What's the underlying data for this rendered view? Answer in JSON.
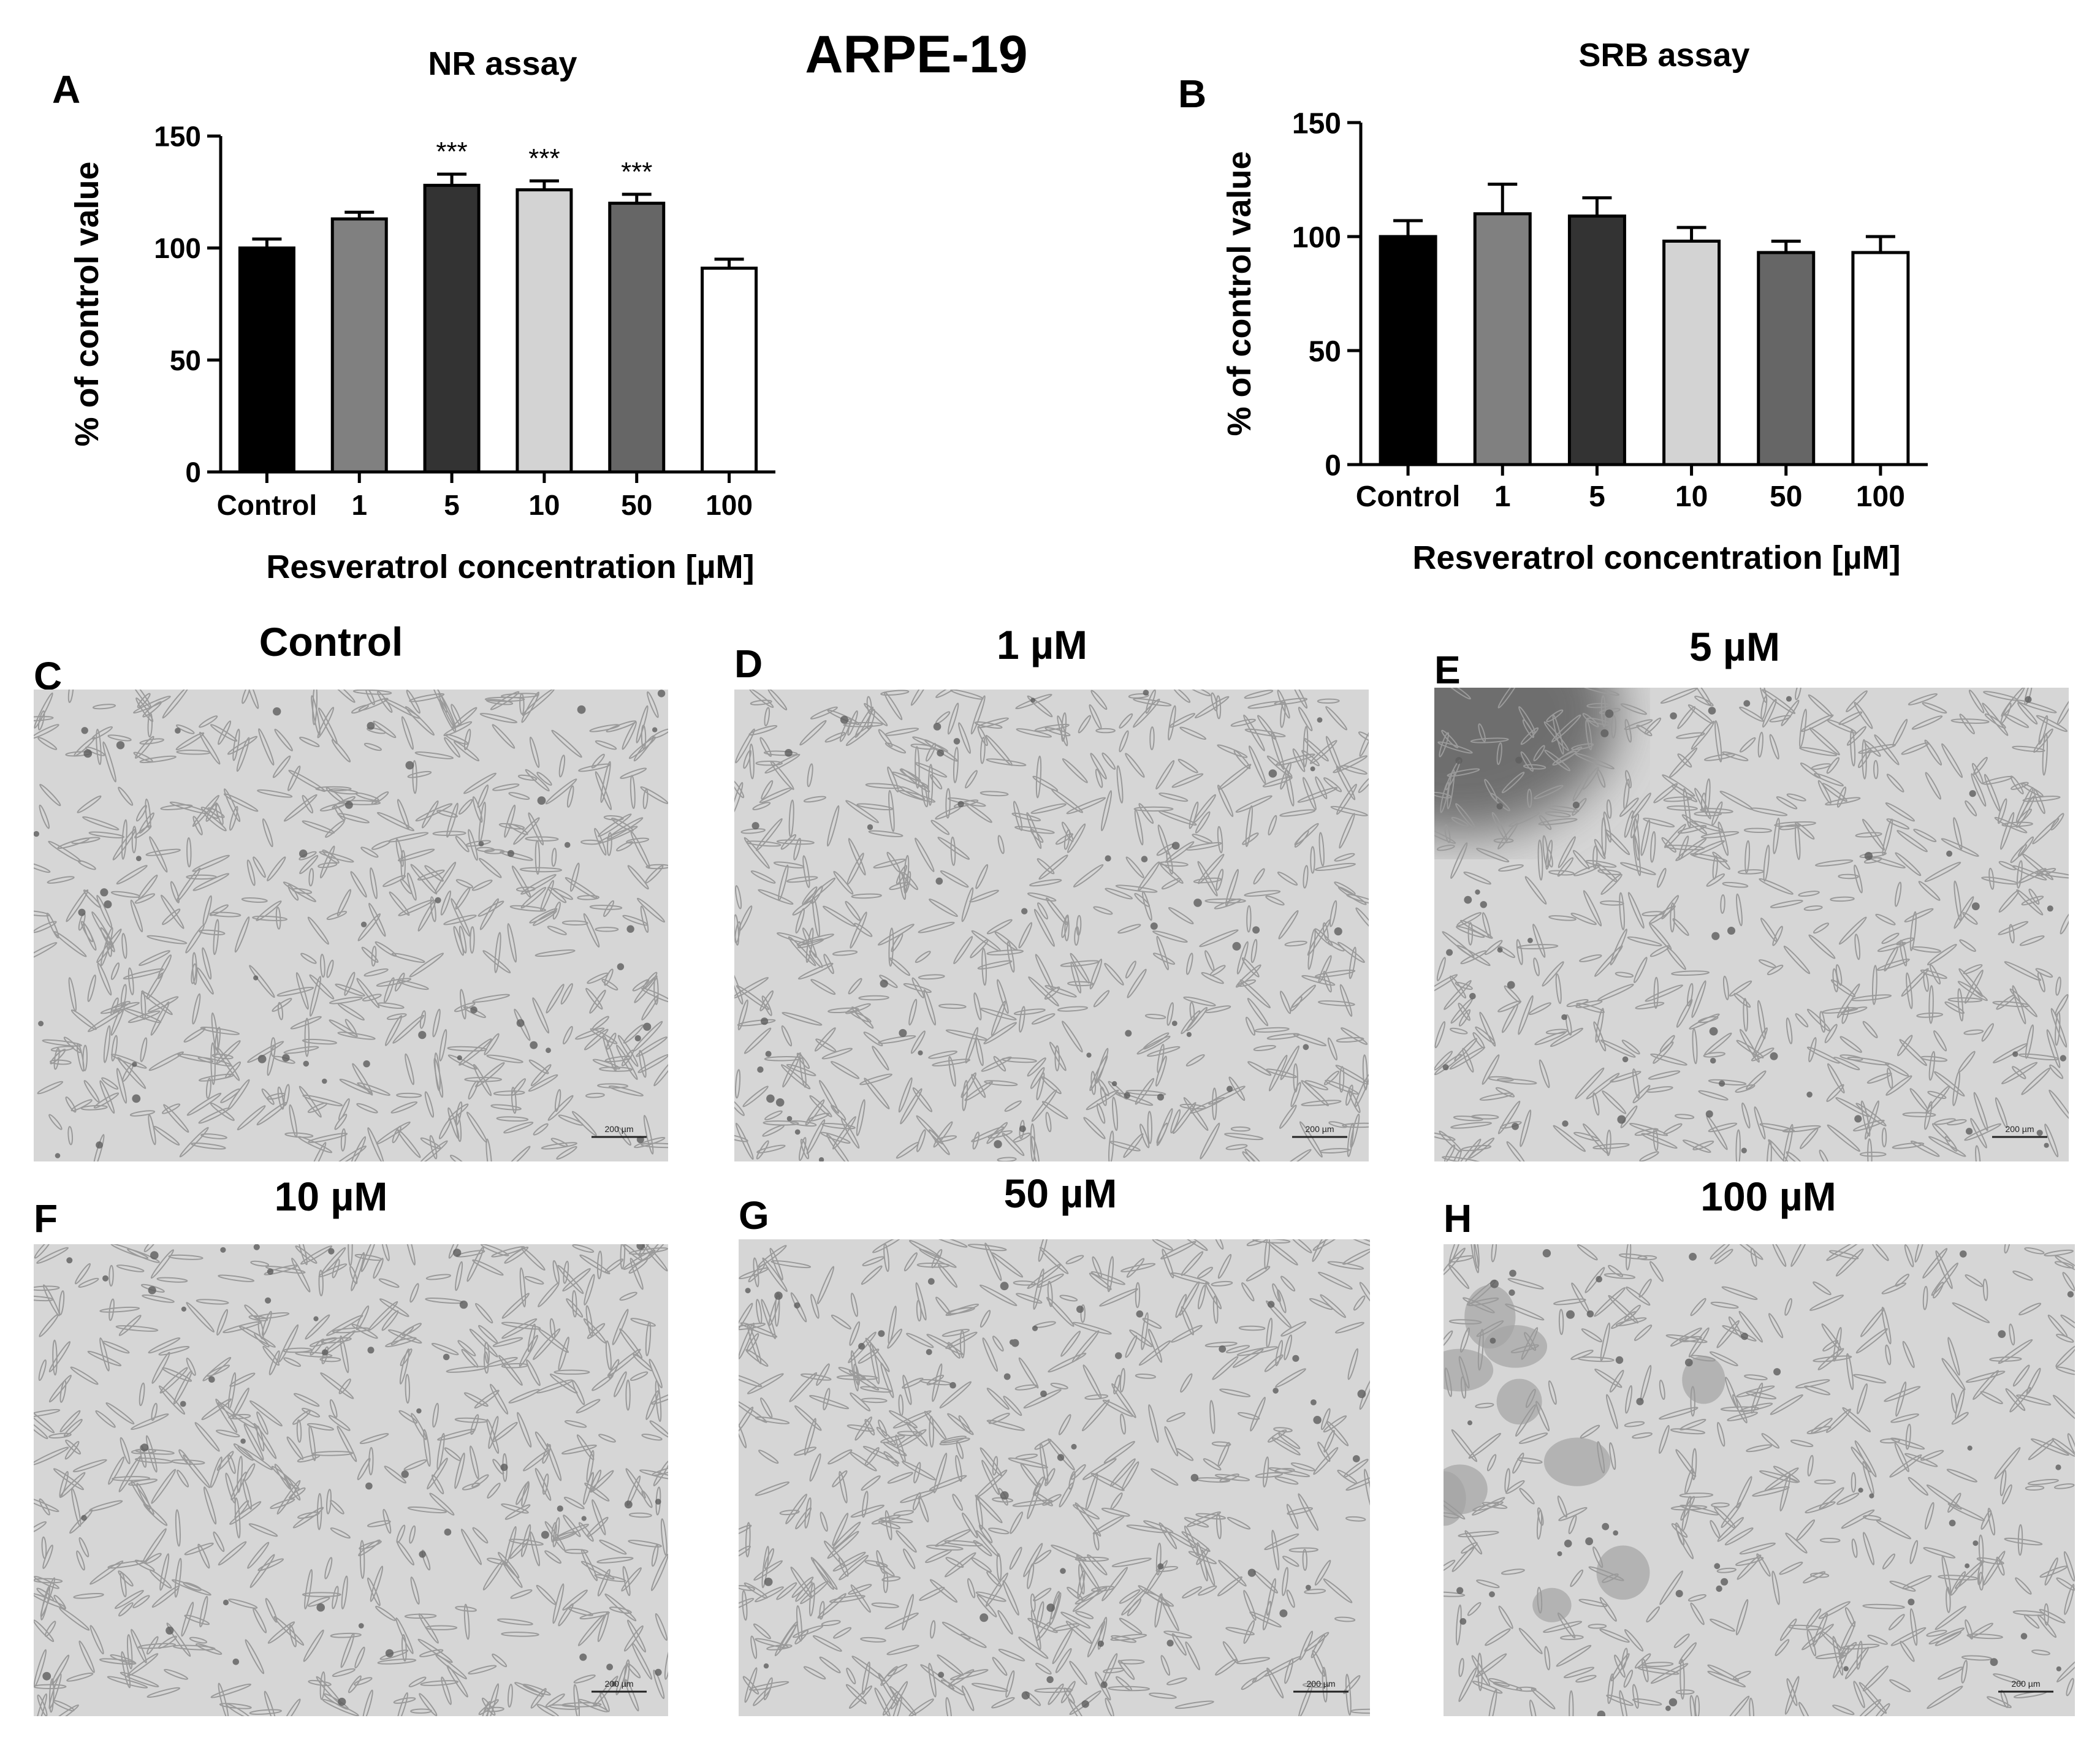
{
  "figure_title": "ARPE-19",
  "colors": {
    "bar_fills": [
      "#000000",
      "#808080",
      "#333333",
      "#d3d3d3",
      "#666666",
      "#ffffff"
    ],
    "micro_bg": "#d6d6d6",
    "micro_cell": "#a9a9a9"
  },
  "chart_data": [
    {
      "type": "bar",
      "panel_label": "A",
      "title": "NR assay",
      "xlabel": "Resveratrol concentration [µM]",
      "ylabel": "% of control value",
      "categories": [
        "Control",
        "1",
        "5",
        "10",
        "50",
        "100"
      ],
      "values": [
        100,
        113,
        128,
        126,
        120,
        91
      ],
      "errors": [
        4,
        3,
        5,
        4,
        4,
        4
      ],
      "significance": [
        "",
        "",
        "***",
        "***",
        "***",
        ""
      ],
      "ylim": [
        0,
        150
      ],
      "yticks": [
        "0",
        "50",
        "100",
        "150"
      ],
      "grid": false,
      "legend": "none"
    },
    {
      "type": "bar",
      "panel_label": "B",
      "title": "SRB assay",
      "xlabel": "Resveratrol concentration [µM]",
      "ylabel": "% of control value",
      "categories": [
        "Control",
        "1",
        "5",
        "10",
        "50",
        "100"
      ],
      "values": [
        100,
        110,
        109,
        98,
        93,
        93
      ],
      "errors": [
        7,
        13,
        8,
        6,
        5,
        7
      ],
      "significance": [
        "",
        "",
        "",
        "",
        "",
        ""
      ],
      "ylim": [
        0,
        150
      ],
      "yticks": [
        "0",
        "50",
        "100",
        "150"
      ],
      "grid": false,
      "legend": "none"
    }
  ],
  "micrographs": [
    {
      "label": "C",
      "title": "Control",
      "scale": "200 µm"
    },
    {
      "label": "D",
      "title": "1 µM",
      "scale": "200 µm"
    },
    {
      "label": "E",
      "title": "5 µM",
      "scale": "200 µm"
    },
    {
      "label": "F",
      "title": "10 µM",
      "scale": "200 µm"
    },
    {
      "label": "G",
      "title": "50 µM",
      "scale": "200 µm"
    },
    {
      "label": "H",
      "title": "100 µM",
      "scale": "200 µm"
    }
  ]
}
